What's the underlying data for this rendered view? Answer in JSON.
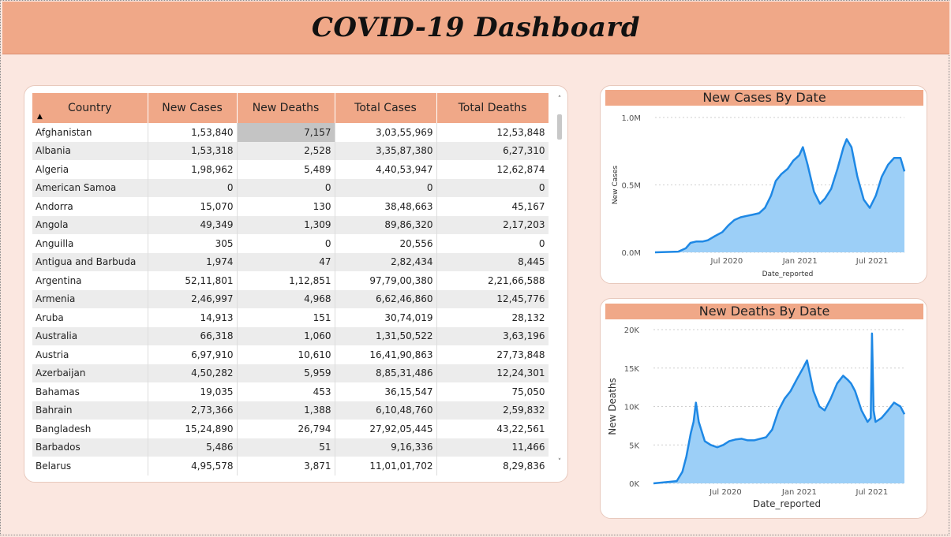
{
  "dashboard": {
    "title": "COVID-19 Dashboard"
  },
  "table": {
    "columns": [
      "Country",
      "New Cases",
      "New Deaths",
      "Total Cases",
      "Total Deaths"
    ],
    "sort_indicator": "▲",
    "rows": [
      [
        "Afghanistan",
        "1,53,840",
        "7,157",
        "3,03,55,969",
        "12,53,848"
      ],
      [
        "Albania",
        "1,53,318",
        "2,528",
        "3,35,87,380",
        "6,27,310"
      ],
      [
        "Algeria",
        "1,98,962",
        "5,489",
        "4,40,53,947",
        "12,62,874"
      ],
      [
        "American Samoa",
        "0",
        "0",
        "0",
        "0"
      ],
      [
        "Andorra",
        "15,070",
        "130",
        "38,48,663",
        "45,167"
      ],
      [
        "Angola",
        "49,349",
        "1,309",
        "89,86,320",
        "2,17,203"
      ],
      [
        "Anguilla",
        "305",
        "0",
        "20,556",
        "0"
      ],
      [
        "Antigua and Barbuda",
        "1,974",
        "47",
        "2,82,434",
        "8,445"
      ],
      [
        "Argentina",
        "52,11,801",
        "1,12,851",
        "97,79,00,380",
        "2,21,66,588"
      ],
      [
        "Armenia",
        "2,46,997",
        "4,968",
        "6,62,46,860",
        "12,45,776"
      ],
      [
        "Aruba",
        "14,913",
        "151",
        "30,74,019",
        "28,132"
      ],
      [
        "Australia",
        "66,318",
        "1,060",
        "1,31,50,522",
        "3,63,196"
      ],
      [
        "Austria",
        "6,97,910",
        "10,610",
        "16,41,90,863",
        "27,73,848"
      ],
      [
        "Azerbaijan",
        "4,50,282",
        "5,959",
        "8,85,31,486",
        "12,24,301"
      ],
      [
        "Bahamas",
        "19,035",
        "453",
        "36,15,547",
        "75,050"
      ],
      [
        "Bahrain",
        "2,73,366",
        "1,388",
        "6,10,48,760",
        "2,59,832"
      ],
      [
        "Bangladesh",
        "15,24,890",
        "26,794",
        "27,92,05,445",
        "43,22,561"
      ],
      [
        "Barbados",
        "5,486",
        "51",
        "9,16,336",
        "11,466"
      ],
      [
        "Belarus",
        "4,95,578",
        "3,871",
        "11,01,01,702",
        "8,29,836"
      ]
    ],
    "scroll_up": "˄",
    "scroll_down": "˅"
  },
  "chart_data": [
    {
      "type": "area",
      "title": "New Cases By Date",
      "xlabel": "Date_reported",
      "ylabel": "New Cases",
      "yticks": [
        "0.0M",
        "0.5M",
        "1.0M"
      ],
      "ylim": [
        0,
        1000000
      ],
      "xticks": [
        {
          "label": "Jul 2020",
          "date": "2020-07-01"
        },
        {
          "label": "Jan 2021",
          "date": "2021-01-01"
        },
        {
          "label": "Jul 2021",
          "date": "2021-07-01"
        }
      ],
      "xlim": [
        "2020-01-03",
        "2021-09-20"
      ],
      "color": "#1e88e5",
      "fill": "#9ccff7",
      "series": [
        {
          "x": [
            "2020-01-03",
            "2020-03-01",
            "2020-03-20",
            "2020-04-01",
            "2020-04-15",
            "2020-05-01",
            "2020-05-15",
            "2020-06-01",
            "2020-06-20",
            "2020-07-05",
            "2020-07-20",
            "2020-08-05",
            "2020-08-20",
            "2020-09-05",
            "2020-09-20",
            "2020-10-05",
            "2020-10-20",
            "2020-11-01",
            "2020-11-15",
            "2020-12-01",
            "2020-12-15",
            "2020-12-30",
            "2021-01-08",
            "2021-01-20",
            "2021-02-05",
            "2021-02-20",
            "2021-03-05",
            "2021-03-20",
            "2021-04-05",
            "2021-04-20",
            "2021-04-28",
            "2021-05-10",
            "2021-05-25",
            "2021-06-10",
            "2021-06-25",
            "2021-07-10",
            "2021-07-25",
            "2021-08-10",
            "2021-08-25",
            "2021-09-10",
            "2021-09-20"
          ],
          "y": [
            0,
            5000,
            30000,
            70000,
            80000,
            80000,
            90000,
            120000,
            150000,
            200000,
            240000,
            260000,
            270000,
            280000,
            290000,
            330000,
            420000,
            530000,
            580000,
            620000,
            680000,
            720000,
            780000,
            650000,
            450000,
            360000,
            400000,
            470000,
            620000,
            780000,
            840000,
            780000,
            560000,
            390000,
            330000,
            420000,
            560000,
            650000,
            700000,
            700000,
            600000
          ]
        }
      ]
    },
    {
      "type": "area",
      "title": "New Deaths By Date",
      "xlabel": "Date_reported",
      "ylabel": "New Deaths",
      "yticks": [
        "0K",
        "5K",
        "10K",
        "15K",
        "20K"
      ],
      "ylim": [
        0,
        20000
      ],
      "xticks": [
        {
          "label": "Jul 2020",
          "date": "2020-07-01"
        },
        {
          "label": "Jan 2021",
          "date": "2021-01-01"
        },
        {
          "label": "Jul 2021",
          "date": "2021-07-01"
        }
      ],
      "xlim": [
        "2020-01-03",
        "2021-09-20"
      ],
      "color": "#1e88e5",
      "fill": "#9ccff7",
      "series": [
        {
          "x": [
            "2020-01-03",
            "2020-03-01",
            "2020-03-15",
            "2020-03-25",
            "2020-04-05",
            "2020-04-12",
            "2020-04-18",
            "2020-04-25",
            "2020-05-10",
            "2020-05-25",
            "2020-06-10",
            "2020-06-25",
            "2020-07-10",
            "2020-07-25",
            "2020-08-10",
            "2020-08-25",
            "2020-09-10",
            "2020-09-25",
            "2020-10-10",
            "2020-10-25",
            "2020-11-10",
            "2020-11-25",
            "2020-12-10",
            "2020-12-25",
            "2021-01-10",
            "2021-01-20",
            "2021-02-05",
            "2021-02-20",
            "2021-03-05",
            "2021-03-20",
            "2021-04-05",
            "2021-04-20",
            "2021-05-01",
            "2021-05-10",
            "2021-05-20",
            "2021-06-05",
            "2021-06-20",
            "2021-06-28",
            "2021-07-01",
            "2021-07-05",
            "2021-07-10",
            "2021-07-25",
            "2021-08-10",
            "2021-08-25",
            "2021-09-10",
            "2021-09-20"
          ],
          "y": [
            0,
            300,
            1500,
            3500,
            6500,
            8000,
            10500,
            8000,
            5500,
            5000,
            4700,
            5000,
            5500,
            5700,
            5800,
            5600,
            5600,
            5800,
            6000,
            7000,
            9500,
            11000,
            12000,
            13500,
            15000,
            16000,
            12000,
            10000,
            9500,
            11000,
            13000,
            14000,
            13500,
            13000,
            12000,
            9500,
            8000,
            8500,
            19500,
            9500,
            8000,
            8500,
            9500,
            10500,
            10000,
            9000
          ]
        }
      ]
    }
  ]
}
